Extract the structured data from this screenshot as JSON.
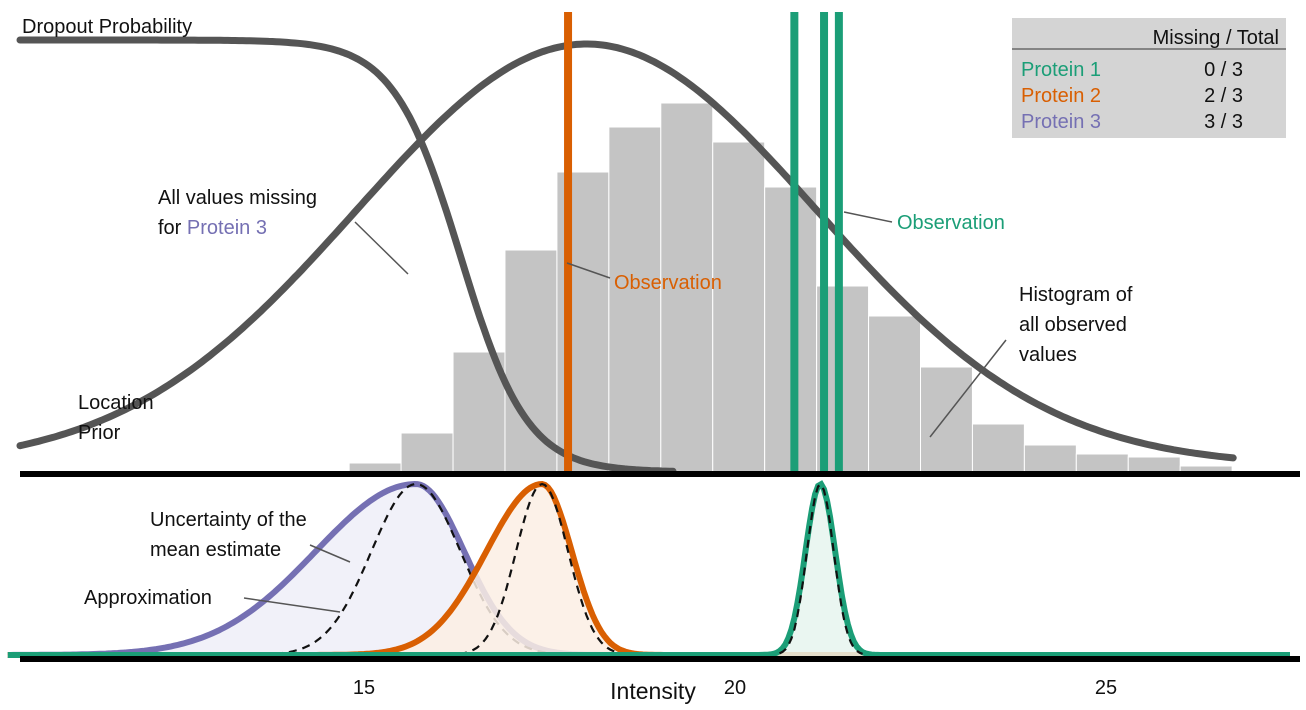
{
  "chart_data": {
    "type": "histogram_with_densities",
    "xlabel": "Intensity",
    "x_ticks": [
      15,
      20,
      25
    ],
    "xlim": [
      10.2,
      27.7
    ],
    "histogram": {
      "label_lines": [
        "Histogram of",
        "all observed",
        "values"
      ],
      "bin_edges": [
        14.8,
        15.5,
        16.2,
        16.9,
        17.6,
        18.3,
        19.0,
        19.7,
        20.4,
        21.1,
        21.8,
        22.5,
        23.2,
        23.9,
        24.6,
        25.3,
        26.0,
        26.7
      ],
      "counts": [
        3,
        13,
        40,
        74,
        100,
        115,
        123,
        110,
        95,
        62,
        52,
        35,
        16,
        9,
        6,
        5,
        2
      ]
    },
    "location_prior": {
      "label_lines": [
        "Location",
        "Prior"
      ],
      "mean": 18.0,
      "sd": 3.1
    },
    "dropout_probability": {
      "label": "Dropout Probability",
      "midpoint": 16.3,
      "scale": 0.45
    },
    "observations": [
      {
        "protein": "Protein 2",
        "x": [
          17.75
        ],
        "color": "#d95f02",
        "label": "Observation"
      },
      {
        "protein": "Protein 1",
        "x": [
          20.8,
          21.2,
          21.4
        ],
        "color": "#1b9e77",
        "label": "Observation"
      }
    ],
    "missing_annotation": {
      "line1": "All values missing",
      "line2_prefix": "for ",
      "line2_protein": "Protein 3"
    },
    "uncertainty_label_lines": [
      "Uncertainty of the",
      "mean estimate"
    ],
    "approximation_label": "Approximation",
    "posteriors": [
      {
        "protein": "Protein 3",
        "color": "#7570b3",
        "fill": "#eeeef8",
        "mode": 15.7,
        "sd_left": 1.35,
        "sd_right": 0.65,
        "approx_sd": 0.6
      },
      {
        "protein": "Protein 2",
        "color": "#d95f02",
        "fill": "#fcefe4",
        "mode": 17.4,
        "sd_left": 0.75,
        "sd_right": 0.4,
        "approx_sd": 0.35
      },
      {
        "protein": "Protein 1",
        "color": "#1b9e77",
        "fill": "#e6f4ee",
        "mode": 21.15,
        "sd_left": 0.2,
        "sd_right": 0.2,
        "approx_sd": 0.18
      }
    ],
    "table": {
      "header": "Missing / Total",
      "rows": [
        {
          "protein": "Protein 1",
          "value": "0 / 3",
          "color": "#1b9e77"
        },
        {
          "protein": "Protein 2",
          "value": "2 / 3",
          "color": "#d95f02"
        },
        {
          "protein": "Protein 3",
          "value": "3 / 3",
          "color": "#7570b3"
        }
      ]
    }
  }
}
